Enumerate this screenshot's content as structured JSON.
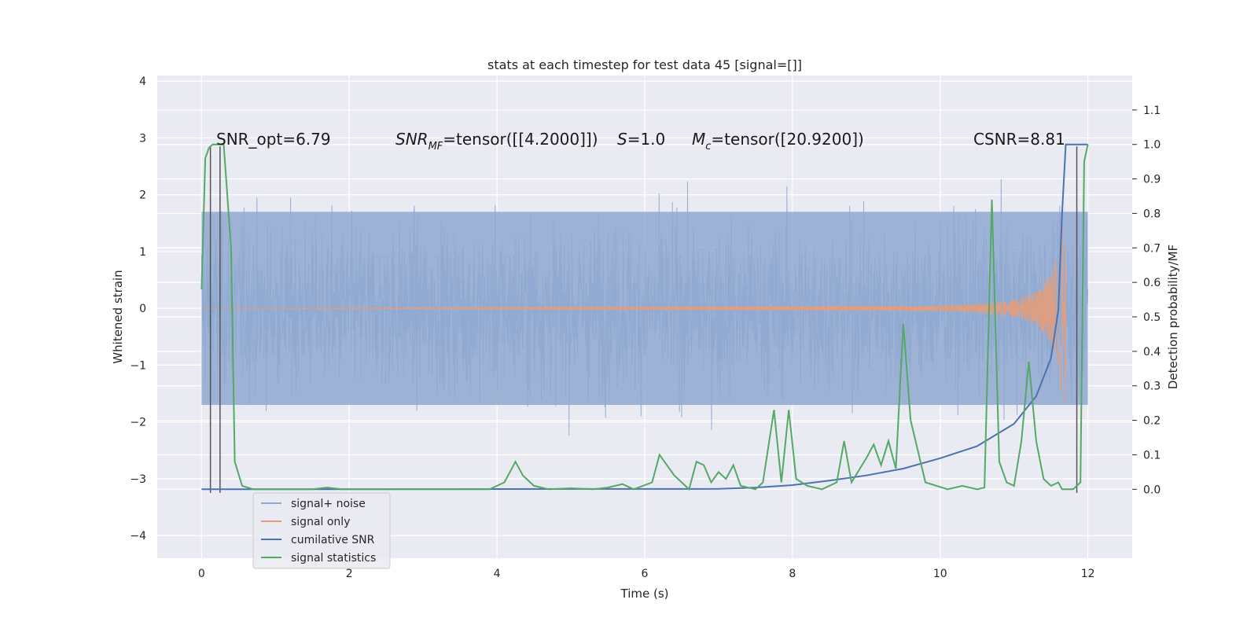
{
  "chart_data": {
    "type": "line",
    "title": "stats at each timestep for test data 45 [signal=[]]",
    "xlabel": "Time (s)",
    "ylabel": "Whitened strain",
    "y2label": "Detection probability/MF",
    "xlim": [
      -0.6,
      12.6
    ],
    "ylim": [
      -4.4,
      4.1
    ],
    "y2lim": [
      -0.2,
      1.2
    ],
    "x_ticks": [
      0,
      2,
      4,
      6,
      8,
      10,
      12
    ],
    "y_ticks": [
      -4,
      -3,
      -2,
      -1,
      0,
      1,
      2,
      3,
      4
    ],
    "y2_ticks": [
      0.0,
      0.1,
      0.2,
      0.3,
      0.4,
      0.5,
      0.6,
      0.7,
      0.8,
      0.9,
      1.0,
      1.1
    ],
    "y_tick_labels": [
      "−4",
      "−3",
      "−2",
      "−1",
      "0",
      "1",
      "2",
      "3",
      "4"
    ],
    "y2_tick_labels": [
      "0.0",
      "0.1",
      "0.2",
      "0.3",
      "0.4",
      "0.5",
      "0.6",
      "0.7",
      "0.8",
      "0.9",
      "1.0",
      "1.1"
    ],
    "grid": true,
    "legend_position": "bottom-left",
    "annotations": {
      "snr_opt": "SNR_opt=6.79",
      "snr_mf_base": "SNR",
      "snr_mf_sub": "MF",
      "snr_mf_value": "=tensor([[4.2000]])",
      "s_label": "S",
      "s_value": "=1.0",
      "mc_base": "M",
      "mc_sub": "c",
      "mc_value": "=tensor([20.9200])",
      "csnr": "CSNR=8.81"
    },
    "series": [
      {
        "name": "signal+ noise",
        "axis": "left",
        "color": "#8fa8d0",
        "envelope_typical": 1.7,
        "envelope_max": 3.7,
        "x_range": [
          0,
          12
        ]
      },
      {
        "name": "signal only",
        "axis": "left",
        "color": "#dd9f84",
        "points": [
          [
            0,
            0
          ],
          [
            10,
            0.05
          ],
          [
            10.5,
            0.08
          ],
          [
            11,
            0.15
          ],
          [
            11.3,
            0.3
          ],
          [
            11.5,
            0.6
          ],
          [
            11.6,
            1.0
          ],
          [
            11.65,
            1.7
          ],
          [
            11.7,
            -1.65
          ]
        ]
      },
      {
        "name": "cumilative SNR",
        "axis": "right",
        "color": "#4c72b0",
        "points": [
          [
            0,
            0
          ],
          [
            7.0,
            0.001
          ],
          [
            7.5,
            0.005
          ],
          [
            8.0,
            0.012
          ],
          [
            8.5,
            0.025
          ],
          [
            9.0,
            0.04
          ],
          [
            9.5,
            0.06
          ],
          [
            10.0,
            0.09
          ],
          [
            10.5,
            0.125
          ],
          [
            11.0,
            0.19
          ],
          [
            11.3,
            0.27
          ],
          [
            11.5,
            0.38
          ],
          [
            11.6,
            0.52
          ],
          [
            11.65,
            0.8
          ],
          [
            11.7,
            1.0
          ],
          [
            12.0,
            1.0
          ]
        ]
      },
      {
        "name": "signal statistics",
        "axis": "right",
        "color": "#55a868",
        "points": [
          [
            0,
            0.58
          ],
          [
            0.05,
            0.96
          ],
          [
            0.1,
            0.99
          ],
          [
            0.15,
            1.0
          ],
          [
            0.3,
            1.0
          ],
          [
            0.4,
            0.7
          ],
          [
            0.45,
            0.08
          ],
          [
            0.55,
            0.01
          ],
          [
            0.7,
            0.0
          ],
          [
            1.5,
            0.0
          ],
          [
            1.7,
            0.005
          ],
          [
            1.9,
            0.0
          ],
          [
            3.9,
            0.0
          ],
          [
            4.1,
            0.02
          ],
          [
            4.25,
            0.08
          ],
          [
            4.35,
            0.04
          ],
          [
            4.5,
            0.01
          ],
          [
            4.7,
            0.0
          ],
          [
            5.0,
            0.003
          ],
          [
            5.3,
            0.0
          ],
          [
            5.5,
            0.005
          ],
          [
            5.7,
            0.015
          ],
          [
            5.85,
            0.0
          ],
          [
            6.1,
            0.02
          ],
          [
            6.2,
            0.1
          ],
          [
            6.3,
            0.07
          ],
          [
            6.4,
            0.04
          ],
          [
            6.5,
            0.02
          ],
          [
            6.6,
            0.0
          ],
          [
            6.7,
            0.08
          ],
          [
            6.8,
            0.07
          ],
          [
            6.9,
            0.02
          ],
          [
            7.0,
            0.05
          ],
          [
            7.1,
            0.03
          ],
          [
            7.2,
            0.07
          ],
          [
            7.3,
            0.01
          ],
          [
            7.5,
            0.0
          ],
          [
            7.6,
            0.02
          ],
          [
            7.75,
            0.23
          ],
          [
            7.85,
            0.02
          ],
          [
            7.95,
            0.23
          ],
          [
            8.05,
            0.03
          ],
          [
            8.2,
            0.01
          ],
          [
            8.4,
            0.0
          ],
          [
            8.6,
            0.02
          ],
          [
            8.7,
            0.14
          ],
          [
            8.8,
            0.02
          ],
          [
            9.0,
            0.09
          ],
          [
            9.1,
            0.13
          ],
          [
            9.2,
            0.07
          ],
          [
            9.3,
            0.14
          ],
          [
            9.4,
            0.06
          ],
          [
            9.5,
            0.48
          ],
          [
            9.6,
            0.2
          ],
          [
            9.8,
            0.02
          ],
          [
            10.1,
            0.0
          ],
          [
            10.3,
            0.01
          ],
          [
            10.5,
            0.0
          ],
          [
            10.6,
            0.005
          ],
          [
            10.7,
            0.84
          ],
          [
            10.8,
            0.08
          ],
          [
            10.9,
            0.02
          ],
          [
            11.0,
            0.01
          ],
          [
            11.1,
            0.14
          ],
          [
            11.2,
            0.37
          ],
          [
            11.3,
            0.14
          ],
          [
            11.4,
            0.03
          ],
          [
            11.5,
            0.01
          ],
          [
            11.6,
            0.02
          ],
          [
            11.65,
            0.0
          ],
          [
            11.8,
            0.0
          ],
          [
            11.9,
            0.02
          ],
          [
            11.95,
            0.95
          ],
          [
            12.0,
            1.0
          ]
        ]
      }
    ],
    "vertical_markers": {
      "color": "#555555",
      "x": [
        0.12,
        0.25,
        11.85
      ],
      "y_range": [
        -3.25,
        2.85
      ]
    }
  }
}
